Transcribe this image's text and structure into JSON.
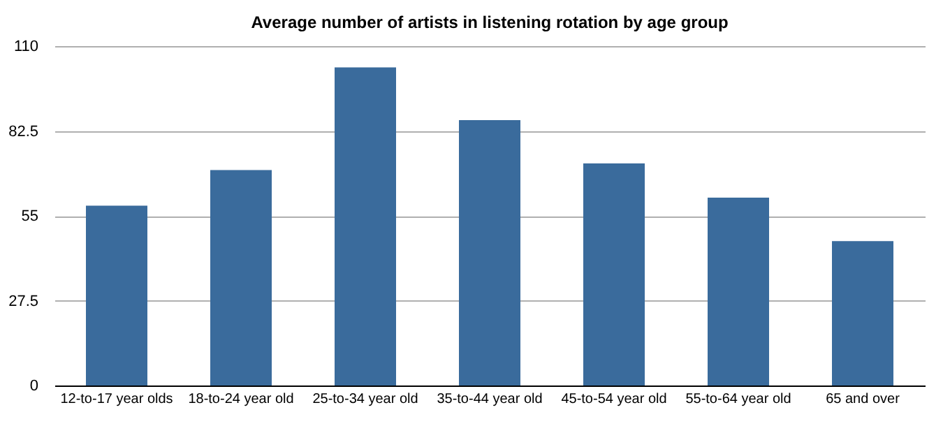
{
  "chart_data": {
    "type": "bar",
    "title": "Average number of artists in listening rotation by age group",
    "categories": [
      "12-to-17 year olds",
      "18-to-24 year old",
      "25-to-34 year old",
      "35-to-44 year old",
      "45-to-54 year old",
      "55-to-64 year old",
      "65 and over"
    ],
    "values": [
      58.3,
      69.8,
      103.1,
      86.0,
      72.0,
      60.9,
      46.8
    ],
    "color": "#3a6b9c",
    "ylim": [
      0,
      110
    ],
    "yticks": [
      0,
      27.5,
      55,
      82.5,
      110
    ],
    "grid": "y"
  }
}
